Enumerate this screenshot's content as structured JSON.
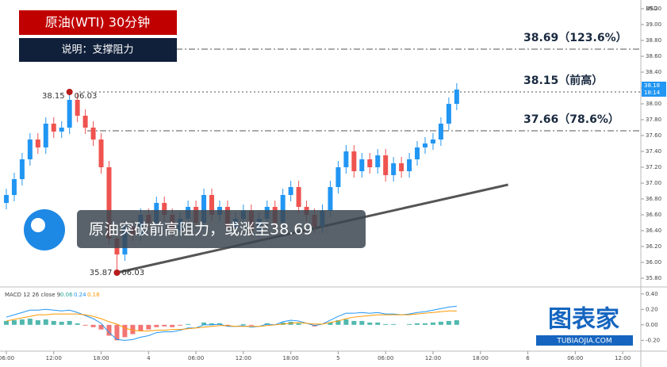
{
  "chart_data": {
    "type": "candlestick",
    "header": "原油(WTI) 30分钟",
    "subheader": "说明：支撑阻力",
    "callout": "原油突破前高阻力，或涨至38.69",
    "currency": "USD",
    "up_color": "#2196f3",
    "down_color": "#ef5350",
    "x": [
      0,
      1,
      2,
      3,
      4,
      5,
      6,
      7,
      8,
      9,
      10,
      11,
      12,
      13,
      14,
      15,
      16,
      17,
      18,
      19,
      20,
      21,
      22,
      23,
      24,
      25,
      26,
      27,
      28,
      29,
      30,
      31,
      32,
      33,
      34,
      35,
      36,
      37,
      38,
      39,
      40,
      41,
      42,
      43,
      44,
      45,
      46,
      47,
      48,
      49,
      50,
      51,
      52,
      53,
      54,
      55,
      56,
      57
    ],
    "open": [
      36.75,
      36.85,
      37.05,
      37.3,
      37.55,
      37.45,
      37.75,
      37.65,
      37.7,
      38.05,
      37.85,
      37.7,
      37.55,
      37.2,
      36.3,
      36.1,
      36.45,
      36.35,
      36.6,
      36.5,
      36.75,
      36.6,
      36.4,
      36.55,
      36.7,
      36.5,
      36.85,
      36.6,
      36.7,
      36.45,
      36.55,
      36.65,
      36.4,
      36.55,
      36.7,
      36.5,
      36.85,
      36.95,
      36.7,
      36.6,
      36.45,
      36.65,
      36.95,
      37.2,
      37.4,
      37.15,
      37.3,
      37.2,
      37.35,
      37.1,
      37.25,
      37.15,
      37.3,
      37.45,
      37.5,
      37.55,
      37.75,
      38.0
    ],
    "high": [
      36.93,
      37.13,
      37.38,
      37.63,
      37.63,
      37.83,
      37.83,
      37.78,
      38.15,
      38.13,
      37.93,
      37.78,
      37.63,
      37.28,
      36.38,
      36.53,
      36.53,
      36.68,
      36.68,
      36.83,
      36.83,
      36.68,
      36.63,
      36.78,
      36.78,
      36.93,
      36.93,
      36.78,
      36.78,
      36.63,
      36.73,
      36.73,
      36.63,
      36.78,
      36.78,
      36.93,
      37.03,
      37.03,
      36.78,
      36.68,
      36.73,
      37.03,
      37.28,
      37.48,
      37.48,
      37.38,
      37.38,
      37.43,
      37.43,
      37.33,
      37.33,
      37.38,
      37.53,
      37.58,
      37.63,
      37.83,
      38.08,
      38.26
    ],
    "low": [
      36.67,
      36.77,
      36.97,
      37.22,
      37.37,
      37.37,
      37.57,
      37.57,
      37.62,
      37.77,
      37.62,
      37.47,
      37.12,
      36.22,
      35.87,
      36.02,
      36.27,
      36.27,
      36.42,
      36.42,
      36.52,
      36.32,
      36.32,
      36.47,
      36.42,
      36.42,
      36.52,
      36.52,
      36.37,
      36.37,
      36.47,
      36.32,
      36.32,
      36.47,
      36.42,
      36.42,
      36.77,
      36.62,
      36.52,
      36.37,
      36.37,
      36.57,
      36.87,
      37.12,
      37.07,
      37.07,
      37.12,
      37.12,
      37.02,
      37.02,
      37.07,
      37.07,
      37.22,
      37.37,
      37.42,
      37.47,
      37.67,
      37.92
    ],
    "close": [
      36.85,
      37.05,
      37.3,
      37.55,
      37.45,
      37.75,
      37.65,
      37.7,
      38.05,
      37.85,
      37.7,
      37.55,
      37.2,
      36.3,
      36.1,
      36.45,
      36.35,
      36.6,
      36.5,
      36.75,
      36.6,
      36.4,
      36.55,
      36.7,
      36.5,
      36.85,
      36.6,
      36.7,
      36.45,
      36.55,
      36.65,
      36.4,
      36.55,
      36.7,
      36.5,
      36.85,
      36.95,
      36.7,
      36.6,
      36.45,
      36.65,
      36.95,
      37.2,
      37.4,
      37.15,
      37.3,
      37.2,
      37.35,
      37.1,
      37.25,
      37.15,
      37.3,
      37.45,
      37.5,
      37.55,
      37.75,
      38.0,
      38.18
    ],
    "xlim": [
      -0.8,
      80.3
    ],
    "xticks": [
      {
        "value": 0,
        "label": "06:00"
      },
      {
        "value": 6,
        "label": "12:00"
      },
      {
        "value": 12,
        "label": "18:00"
      },
      {
        "value": 18,
        "label": "4"
      },
      {
        "value": 24,
        "label": "06:00"
      },
      {
        "value": 30,
        "label": "12:00"
      },
      {
        "value": 36,
        "label": "18:00"
      },
      {
        "value": 42,
        "label": "5"
      },
      {
        "value": 48,
        "label": "06:00"
      },
      {
        "value": 54,
        "label": "12:00"
      },
      {
        "value": 60,
        "label": "18:00"
      },
      {
        "value": 66,
        "label": "6"
      },
      {
        "value": 72,
        "label": "06:00"
      },
      {
        "value": 78,
        "label": "12:00"
      }
    ],
    "ylim": [
      35.7,
      39.3
    ],
    "yticks": [
      {
        "value": 35.8,
        "label": "35.80"
      },
      {
        "value": 36.0,
        "label": "36.00"
      },
      {
        "value": 36.2,
        "label": "36.20"
      },
      {
        "value": 36.4,
        "label": "36.40"
      },
      {
        "value": 36.6,
        "label": "36.60"
      },
      {
        "value": 36.8,
        "label": "36.80"
      },
      {
        "value": 37.0,
        "label": "37.00"
      },
      {
        "value": 37.2,
        "label": "37.20"
      },
      {
        "value": 37.4,
        "label": "37.40"
      },
      {
        "value": 37.6,
        "label": "37.60"
      },
      {
        "value": 37.8,
        "label": "37.80"
      },
      {
        "value": 38.0,
        "label": "38.00"
      },
      {
        "value": 38.2,
        "label": "38.20"
      },
      {
        "value": 38.4,
        "label": "38.40"
      },
      {
        "value": 38.6,
        "label": "38.60"
      },
      {
        "value": 38.8,
        "label": "38.80"
      },
      {
        "value": 39.0,
        "label": "39.00"
      },
      {
        "value": 39.2,
        "label": "39.20"
      }
    ],
    "last_price": {
      "value": 38.18,
      "label": "38.18"
    },
    "countdown": "18:14",
    "levels": [
      {
        "value": 38.69,
        "label": "38.69（123.6%）",
        "style": "dashdot"
      },
      {
        "value": 38.15,
        "label": "38.15（前高）",
        "style": "dotted"
      },
      {
        "value": 37.66,
        "label": "37.66（78.6%）",
        "style": "dashdot"
      }
    ],
    "points": [
      {
        "x": 8,
        "y": 38.15,
        "label": "38.15",
        "date": "06.03"
      },
      {
        "x": 14,
        "y": 35.87,
        "label": "35.87",
        "date": "06.03"
      }
    ],
    "trendline": {
      "x": [
        14,
        63.5
      ],
      "y": [
        35.87,
        36.98
      ]
    },
    "macd": {
      "title": "MACD 12 26 close 9",
      "readout": [
        {
          "value": 0.06,
          "label": "0.06"
        },
        {
          "value": 0.24,
          "label": "0.24"
        },
        {
          "value": 0.18,
          "label": "0.18"
        }
      ],
      "hist": [
        0.05,
        0.06,
        0.07,
        0.08,
        0.06,
        0.07,
        0.05,
        0.04,
        0.05,
        0.02,
        -0.01,
        -0.03,
        -0.06,
        -0.14,
        -0.2,
        -0.16,
        -0.12,
        -0.08,
        -0.06,
        -0.03,
        -0.02,
        -0.03,
        -0.01,
        0.01,
        0.0,
        0.03,
        0.02,
        0.02,
        -0.01,
        0.0,
        0.01,
        -0.01,
        0.0,
        0.02,
        0.0,
        0.03,
        0.04,
        0.02,
        0.0,
        -0.02,
        0.0,
        0.03,
        0.06,
        0.07,
        0.05,
        0.05,
        0.03,
        0.03,
        0.01,
        0.01,
        0.0,
        0.01,
        0.02,
        0.02,
        0.03,
        0.04,
        0.05,
        0.06
      ],
      "macd": [
        0.1,
        0.13,
        0.16,
        0.19,
        0.19,
        0.2,
        0.19,
        0.18,
        0.19,
        0.16,
        0.12,
        0.08,
        0.02,
        -0.1,
        -0.19,
        -0.2,
        -0.19,
        -0.16,
        -0.14,
        -0.1,
        -0.09,
        -0.09,
        -0.07,
        -0.04,
        -0.04,
        0.0,
        0.0,
        0.01,
        -0.02,
        -0.02,
        -0.01,
        -0.03,
        -0.02,
        0.01,
        0.0,
        0.04,
        0.06,
        0.05,
        0.02,
        -0.01,
        0.01,
        0.06,
        0.11,
        0.15,
        0.15,
        0.16,
        0.15,
        0.16,
        0.14,
        0.14,
        0.13,
        0.14,
        0.16,
        0.17,
        0.19,
        0.21,
        0.23,
        0.24
      ],
      "signal": [
        0.05,
        0.07,
        0.09,
        0.11,
        0.13,
        0.13,
        0.14,
        0.14,
        0.14,
        0.14,
        0.13,
        0.11,
        0.08,
        0.04,
        0.01,
        -0.04,
        -0.07,
        -0.08,
        -0.08,
        -0.07,
        -0.07,
        -0.06,
        -0.06,
        -0.05,
        -0.04,
        -0.03,
        -0.02,
        -0.01,
        -0.01,
        -0.02,
        -0.02,
        -0.02,
        -0.02,
        -0.01,
        0.0,
        0.01,
        0.02,
        0.03,
        0.02,
        0.01,
        0.01,
        0.03,
        0.05,
        0.08,
        0.1,
        0.11,
        0.12,
        0.13,
        0.13,
        0.13,
        0.13,
        0.13,
        0.14,
        0.15,
        0.16,
        0.17,
        0.18,
        0.18
      ],
      "macd_color": "#2196f3",
      "signal_color": "#ff9800",
      "ylim": [
        -0.33,
        0.48
      ],
      "yticks": [
        {
          "value": -0.2,
          "label": "-0.20"
        },
        {
          "value": 0.0,
          "label": "0.00"
        },
        {
          "value": 0.2,
          "label": "0.20"
        },
        {
          "value": 0.4,
          "label": "0.40"
        }
      ]
    },
    "watermark": "图表家",
    "watermark_url": "TUBIAOJIA.COM"
  }
}
